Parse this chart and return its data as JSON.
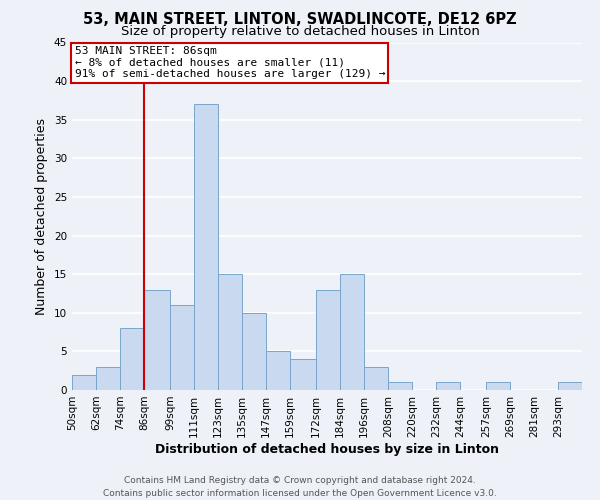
{
  "title1": "53, MAIN STREET, LINTON, SWADLINCOTE, DE12 6PZ",
  "title2": "Size of property relative to detached houses in Linton",
  "xlabel": "Distribution of detached houses by size in Linton",
  "ylabel": "Number of detached properties",
  "bin_labels": [
    "50sqm",
    "62sqm",
    "74sqm",
    "86sqm",
    "99sqm",
    "111sqm",
    "123sqm",
    "135sqm",
    "147sqm",
    "159sqm",
    "172sqm",
    "184sqm",
    "196sqm",
    "208sqm",
    "220sqm",
    "232sqm",
    "244sqm",
    "257sqm",
    "269sqm",
    "281sqm",
    "293sqm"
  ],
  "bin_edges": [
    50,
    62,
    74,
    86,
    99,
    111,
    123,
    135,
    147,
    159,
    172,
    184,
    196,
    208,
    220,
    232,
    244,
    257,
    269,
    281,
    293,
    305
  ],
  "counts": [
    2,
    3,
    8,
    13,
    11,
    37,
    15,
    10,
    5,
    4,
    13,
    15,
    3,
    1,
    0,
    1,
    0,
    1,
    0,
    0,
    1
  ],
  "bar_color": "#c9d9f0",
  "bar_edge_color": "#7aa4cc",
  "vline_x": 86,
  "vline_color": "#cc0000",
  "annotation_title": "53 MAIN STREET: 86sqm",
  "annotation_line1": "← 8% of detached houses are smaller (11)",
  "annotation_line2": "91% of semi-detached houses are larger (129) →",
  "annotation_box_edge_color": "#cc0000",
  "ylim": [
    0,
    45
  ],
  "yticks": [
    0,
    5,
    10,
    15,
    20,
    25,
    30,
    35,
    40,
    45
  ],
  "footer1": "Contains HM Land Registry data © Crown copyright and database right 2024.",
  "footer2": "Contains public sector information licensed under the Open Government Licence v3.0.",
  "background_color": "#eef2f8",
  "grid_color": "#ffffff",
  "title_fontsize": 10.5,
  "subtitle_fontsize": 9.5,
  "axis_label_fontsize": 9,
  "tick_fontsize": 7.5,
  "footer_fontsize": 6.5,
  "annotation_fontsize": 8
}
